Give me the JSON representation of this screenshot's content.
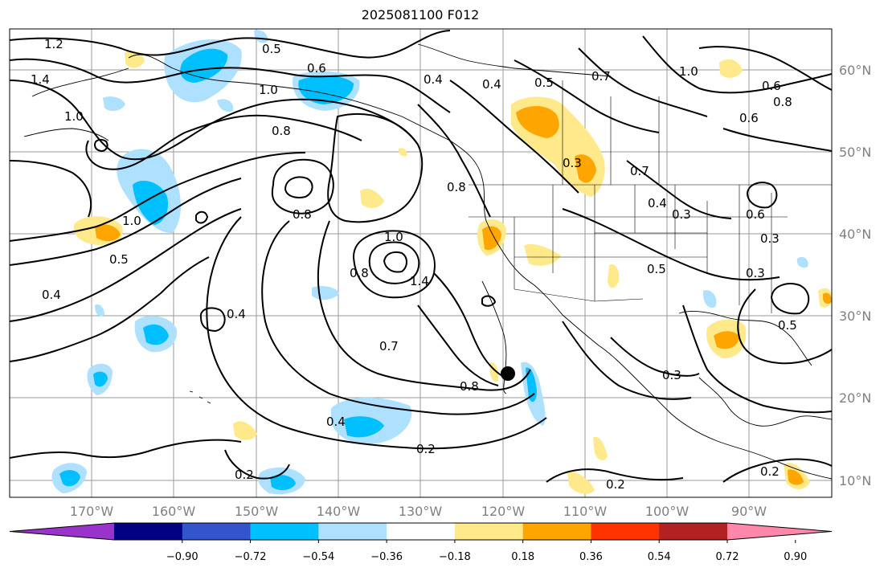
{
  "title": "2025081100 F012",
  "map": {
    "lon_labels": [
      "170°W",
      "160°W",
      "150°W",
      "140°W",
      "130°W",
      "120°W",
      "110°W",
      "100°W",
      "90°W"
    ],
    "lat_labels": [
      "60°N",
      "50°N",
      "40°N",
      "30°N",
      "20°N",
      "10°N"
    ],
    "contour_labels": [
      "1.2",
      "1.4",
      "1.0",
      "0.5",
      "0.6",
      "1.0",
      "0.8",
      "0.8",
      "0.4",
      "0.4",
      "0.5",
      "0.7",
      "0.6",
      "0.8",
      "1.0",
      "0.6",
      "0.8",
      "1.0",
      "1.4",
      "0.8",
      "0.3",
      "0.7",
      "0.4",
      "0.3",
      "0.6",
      "0.3",
      "0.3",
      "0.5",
      "0.5",
      "0.4",
      "0.7",
      "0.8",
      "0.4",
      "0.2",
      "0.3",
      "0.2",
      "0.2",
      "0.2",
      "1.0",
      "0.5",
      "0.4"
    ],
    "marker": "storm-center"
  },
  "colorbar": {
    "ticks": [
      "−0.90",
      "−0.72",
      "−0.54",
      "−0.36",
      "−0.18",
      "0.18",
      "0.36",
      "0.54",
      "0.72",
      "0.90"
    ],
    "colors": [
      "#9933cc",
      "#000080",
      "#3355cc",
      "#00bfff",
      "#aee0ff",
      "#ffffff",
      "#ffe98a",
      "#ffa500",
      "#ff3300",
      "#b22222",
      "#ff88aa"
    ]
  }
}
